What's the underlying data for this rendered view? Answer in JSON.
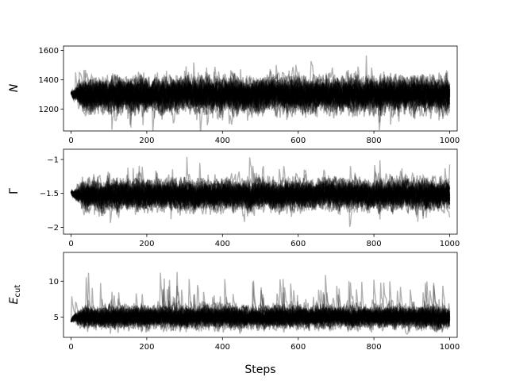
{
  "chart_data": [
    {
      "type": "line",
      "ylabel": "N",
      "xlim": [
        -20,
        1020
      ],
      "ylim": [
        1050,
        1630
      ],
      "x_ticks": [
        0,
        200,
        400,
        600,
        800,
        1000
      ],
      "y_ticks": [
        1200,
        1400,
        1600
      ],
      "series_summary": {
        "walkers": 50,
        "steps": 1000,
        "start": 1310,
        "center": 1300,
        "spread_sd": 70,
        "trace_color": "#000000",
        "alpha": 0.3
      }
    },
    {
      "type": "line",
      "ylabel": "Γ",
      "xlim": [
        -20,
        1020
      ],
      "ylim": [
        -2.1,
        -0.85
      ],
      "x_ticks": [
        0,
        200,
        400,
        600,
        800,
        1000
      ],
      "y_ticks": [
        -2.0,
        -1.5,
        -1.0
      ],
      "series_summary": {
        "walkers": 50,
        "steps": 1000,
        "start": -1.48,
        "center": -1.52,
        "spread_sd": 0.13,
        "trace_color": "#000000",
        "alpha": 0.3
      }
    },
    {
      "type": "line",
      "ylabel": "E_cut",
      "xlabel": "Steps",
      "xlim": [
        -20,
        1020
      ],
      "ylim": [
        2.2,
        14
      ],
      "x_ticks": [
        0,
        200,
        400,
        600,
        800,
        1000
      ],
      "y_ticks": [
        5,
        10
      ],
      "series_summary": {
        "walkers": 50,
        "steps": 1000,
        "start": 4.4,
        "center": 5.0,
        "spread_sd": 0.9,
        "trace_color": "#000000",
        "alpha": 0.3
      }
    }
  ],
  "labels": {
    "y_main": [
      "N",
      "Γ",
      "E"
    ],
    "y_sub": [
      "",
      "",
      "cut"
    ],
    "xlabel": "Steps"
  }
}
